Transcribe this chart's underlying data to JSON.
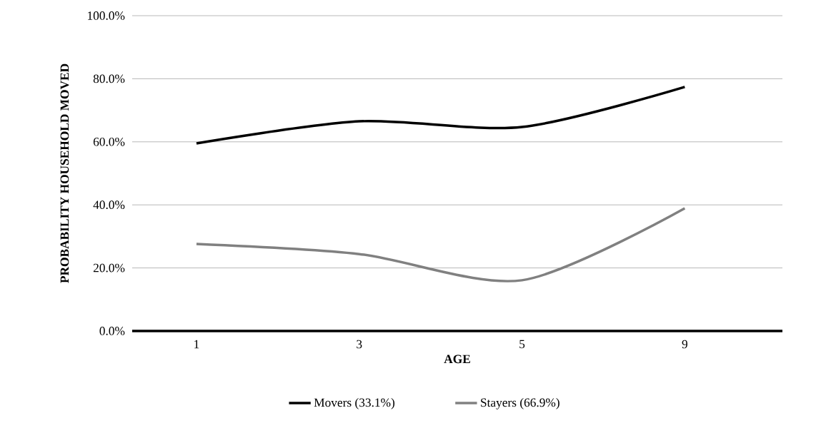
{
  "chart_data": {
    "type": "line",
    "xlabel": "AGE",
    "ylabel": "PROBABILITY HOUSEHOLD MOVED",
    "categories": [
      "1",
      "3",
      "5",
      "9"
    ],
    "series": [
      {
        "name": "Movers (33.1%)",
        "color": "#000000",
        "values": [
          59.5,
          66.5,
          64.7,
          77.4
        ]
      },
      {
        "name": "Stayers (66.9%)",
        "color": "#808080",
        "values": [
          27.6,
          24.4,
          16.1,
          38.9
        ]
      }
    ],
    "ylim": [
      0,
      100
    ],
    "yticks": [
      {
        "value": 0,
        "label": "0.0%"
      },
      {
        "value": 20,
        "label": "20.0%"
      },
      {
        "value": 40,
        "label": "40.0%"
      },
      {
        "value": 60,
        "label": "60.0%"
      },
      {
        "value": 80,
        "label": "80.0%"
      },
      {
        "value": 100,
        "label": "100.0%"
      }
    ],
    "grid": "y",
    "legend": "bottom",
    "marker": "none",
    "line_style": "solid"
  }
}
